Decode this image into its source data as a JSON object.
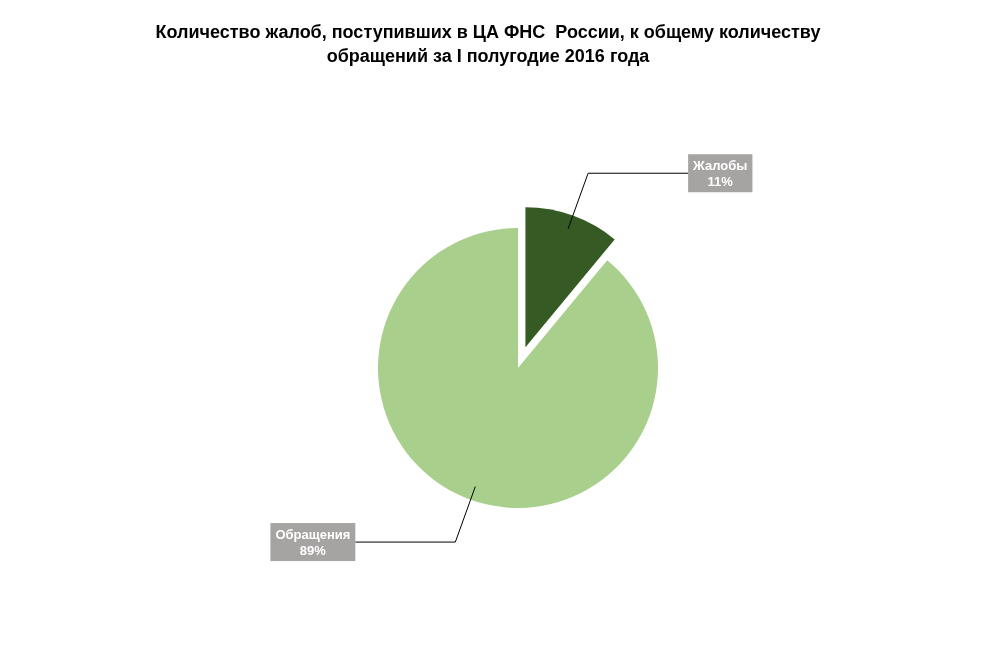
{
  "chart_data": {
    "type": "pie",
    "title": "Количество жалоб, поступивших в ЦА ФНС  России, к общему количеству обращений за I полугодие 2016 года",
    "categories": [
      "Жалобы",
      "Обращения"
    ],
    "values": [
      11,
      89
    ],
    "colors": [
      "#355a23",
      "#a9cf8c"
    ],
    "value_labels": [
      "11%",
      "89%"
    ]
  }
}
